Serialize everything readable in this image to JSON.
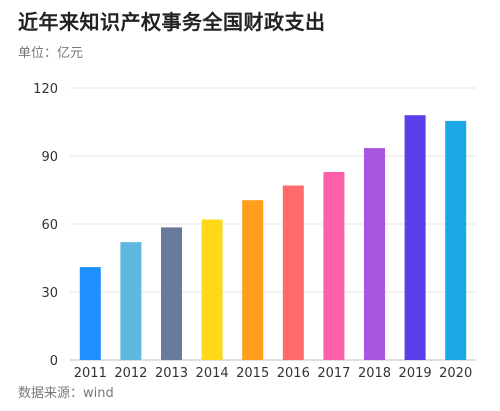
{
  "title": "近年来知识产权事务全国财政支出",
  "subtitle": "单位：亿元",
  "source": "数据来源：wind",
  "chart_data": {
    "type": "bar",
    "title": "近年来知识产权事务全国财政支出",
    "subtitle": "单位：亿元",
    "xlabel": "",
    "ylabel": "",
    "categories": [
      "2011",
      "2012",
      "2013",
      "2014",
      "2015",
      "2016",
      "2017",
      "2018",
      "2019",
      "2020"
    ],
    "values": [
      41,
      52,
      58.5,
      62,
      70.5,
      77,
      83,
      93.5,
      108,
      105.5
    ],
    "colors": [
      "#1E90FF",
      "#5FB8DE",
      "#687B9A",
      "#FFD81A",
      "#FF9F1C",
      "#FF6B6B",
      "#FF5FA8",
      "#A855E0",
      "#5B3EE8",
      "#1BA8E8"
    ],
    "ylim": [
      0,
      120
    ],
    "yticks": [
      0,
      30,
      60,
      90,
      120
    ],
    "grid": true,
    "legend": "none"
  }
}
